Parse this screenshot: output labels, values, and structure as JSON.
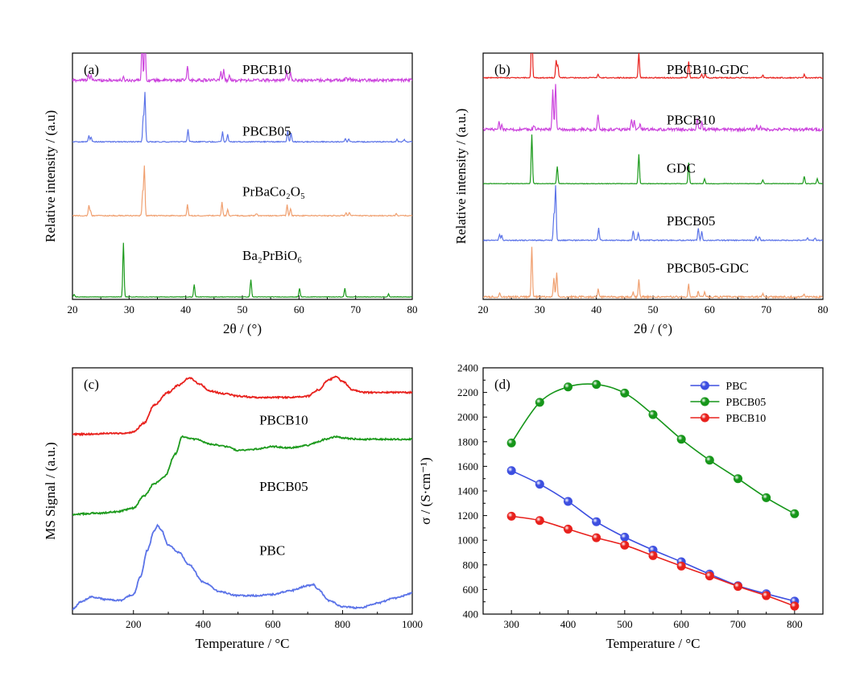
{
  "colors": {
    "red": "#e8211d",
    "magenta": "#cc44dd",
    "blue": "#5b73e8",
    "orange": "#f0a070",
    "green": "#1c9a1c"
  },
  "chart_data": [
    {
      "panel_label": "(a)",
      "type": "line",
      "xlabel": "2θ / (°)",
      "ylabel": "Relative intensity / (a.u)",
      "xlim": [
        20,
        80
      ],
      "xticks": [
        20,
        30,
        40,
        50,
        60,
        70,
        80
      ],
      "series": [
        {
          "name": "PBCB10",
          "color": "#cc44dd",
          "baseline": 0.89,
          "noise": 0.006,
          "peaks": [
            [
              22.8,
              0.025
            ],
            [
              23.3,
              0.015
            ],
            [
              29.0,
              0.01
            ],
            [
              32.3,
              0.17
            ],
            [
              32.8,
              0.19
            ],
            [
              40.3,
              0.055
            ],
            [
              46.2,
              0.035
            ],
            [
              46.7,
              0.04
            ],
            [
              47.7,
              0.025
            ],
            [
              57.8,
              0.04
            ],
            [
              58.5,
              0.03
            ],
            [
              68.3,
              0.015
            ],
            [
              69.0,
              0.012
            ]
          ]
        },
        {
          "name": "PBCB05",
          "color": "#5b73e8",
          "baseline": 0.64,
          "noise": 0.002,
          "peaks": [
            [
              22.9,
              0.025
            ],
            [
              23.3,
              0.02
            ],
            [
              32.5,
              0.1
            ],
            [
              32.8,
              0.2
            ],
            [
              40.4,
              0.05
            ],
            [
              46.5,
              0.04
            ],
            [
              47.4,
              0.03
            ],
            [
              58.0,
              0.045
            ],
            [
              58.6,
              0.035
            ],
            [
              68.2,
              0.012
            ],
            [
              68.8,
              0.012
            ],
            [
              77.3,
              0.01
            ],
            [
              78.6,
              0.01
            ]
          ]
        },
        {
          "name": "PrBaCo₂O₅",
          "color": "#f0a070",
          "baseline": 0.34,
          "noise": 0.002,
          "peaks": [
            [
              22.9,
              0.04
            ],
            [
              23.2,
              0.02
            ],
            [
              32.4,
              0.095
            ],
            [
              32.7,
              0.2
            ],
            [
              40.3,
              0.045
            ],
            [
              46.4,
              0.055
            ],
            [
              47.4,
              0.025
            ],
            [
              52.5,
              0.008
            ],
            [
              57.9,
              0.045
            ],
            [
              58.5,
              0.03
            ],
            [
              68.3,
              0.012
            ],
            [
              68.9,
              0.012
            ],
            [
              77.2,
              0.008
            ]
          ]
        },
        {
          "name": "Ba₂PrBiO₆",
          "color": "#1c9a1c",
          "baseline": 0.01,
          "noise": 0.001,
          "peaks": [
            [
              20.3,
              0.01
            ],
            [
              29.0,
              0.22
            ],
            [
              41.5,
              0.05
            ],
            [
              51.5,
              0.07
            ],
            [
              60.1,
              0.035
            ],
            [
              68.1,
              0.035
            ],
            [
              75.8,
              0.012
            ]
          ]
        }
      ]
    },
    {
      "panel_label": "(b)",
      "type": "line",
      "xlabel": "2θ / (°)",
      "ylabel": "Relative intensity / (a.u.)",
      "xlim": [
        20,
        80
      ],
      "xticks": [
        20,
        30,
        40,
        50,
        60,
        70,
        80
      ],
      "series": [
        {
          "name": "PBCB10-GDC",
          "color": "#e8211d",
          "baseline": 0.9,
          "noise": 0.002,
          "peaks": [
            [
              28.6,
              0.21
            ],
            [
              32.9,
              0.07
            ],
            [
              33.2,
              0.05
            ],
            [
              40.3,
              0.015
            ],
            [
              47.5,
              0.1
            ],
            [
              56.3,
              0.065
            ],
            [
              58.6,
              0.015
            ],
            [
              59.2,
              0.015
            ],
            [
              69.4,
              0.01
            ],
            [
              76.7,
              0.015
            ]
          ]
        },
        {
          "name": "PBCB10",
          "color": "#cc44dd",
          "baseline": 0.69,
          "noise": 0.006,
          "peaks": [
            [
              22.8,
              0.03
            ],
            [
              23.3,
              0.02
            ],
            [
              29.0,
              0.015
            ],
            [
              32.3,
              0.16
            ],
            [
              32.8,
              0.19
            ],
            [
              40.3,
              0.06
            ],
            [
              46.2,
              0.035
            ],
            [
              46.7,
              0.04
            ],
            [
              47.7,
              0.025
            ],
            [
              57.8,
              0.045
            ],
            [
              58.6,
              0.03
            ],
            [
              68.3,
              0.015
            ],
            [
              69.0,
              0.015
            ]
          ]
        },
        {
          "name": "GDC",
          "color": "#1c9a1c",
          "baseline": 0.47,
          "noise": 0.001,
          "peaks": [
            [
              28.6,
              0.2
            ],
            [
              33.1,
              0.07
            ],
            [
              47.5,
              0.12
            ],
            [
              56.3,
              0.085
            ],
            [
              59.1,
              0.02
            ],
            [
              69.4,
              0.015
            ],
            [
              76.7,
              0.03
            ],
            [
              79.0,
              0.02
            ]
          ]
        },
        {
          "name": "PBCB05",
          "color": "#5b73e8",
          "baseline": 0.24,
          "noise": 0.002,
          "peaks": [
            [
              22.9,
              0.025
            ],
            [
              23.3,
              0.02
            ],
            [
              32.5,
              0.1
            ],
            [
              32.8,
              0.22
            ],
            [
              40.4,
              0.05
            ],
            [
              46.5,
              0.04
            ],
            [
              47.4,
              0.03
            ],
            [
              58.0,
              0.05
            ],
            [
              58.6,
              0.035
            ],
            [
              68.2,
              0.015
            ],
            [
              68.8,
              0.015
            ],
            [
              77.3,
              0.01
            ],
            [
              78.6,
              0.01
            ]
          ]
        },
        {
          "name": "PBCB05-GDC",
          "color": "#f0a070",
          "baseline": 0.01,
          "noise": 0.004,
          "peaks": [
            [
              22.9,
              0.015
            ],
            [
              28.6,
              0.2
            ],
            [
              32.5,
              0.08
            ],
            [
              33.0,
              0.1
            ],
            [
              40.3,
              0.03
            ],
            [
              46.5,
              0.02
            ],
            [
              47.5,
              0.07
            ],
            [
              56.3,
              0.05
            ],
            [
              58.0,
              0.025
            ],
            [
              59.1,
              0.02
            ],
            [
              69.4,
              0.012
            ],
            [
              76.7,
              0.012
            ]
          ]
        }
      ]
    },
    {
      "panel_label": "(c)",
      "type": "line",
      "xlabel": "Temperature / °C",
      "ylabel": "MS Signal / (a.u.)",
      "xlim": [
        25,
        1000
      ],
      "xticks": [
        200,
        400,
        600,
        800,
        1000
      ],
      "series": [
        {
          "name": "PBCB10",
          "color": "#e8211d",
          "x": [
            25,
            180,
            200,
            230,
            260,
            300,
            330,
            360,
            390,
            420,
            460,
            500,
            550,
            600,
            650,
            700,
            730,
            760,
            780,
            800,
            830,
            860,
            900,
            950,
            1000
          ],
          "y": [
            0.73,
            0.735,
            0.74,
            0.775,
            0.85,
            0.9,
            0.93,
            0.96,
            0.935,
            0.905,
            0.895,
            0.885,
            0.88,
            0.88,
            0.88,
            0.885,
            0.91,
            0.95,
            0.965,
            0.945,
            0.91,
            0.9,
            0.9,
            0.9,
            0.9
          ]
        },
        {
          "name": "PBCB05",
          "color": "#1c9a1c",
          "x": [
            25,
            100,
            150,
            200,
            230,
            260,
            290,
            320,
            340,
            380,
            420,
            470,
            500,
            550,
            600,
            650,
            700,
            730,
            750,
            780,
            800,
            850,
            900,
            950,
            1000
          ],
          "y": [
            0.405,
            0.41,
            0.415,
            0.43,
            0.48,
            0.53,
            0.56,
            0.65,
            0.72,
            0.71,
            0.69,
            0.68,
            0.665,
            0.67,
            0.68,
            0.675,
            0.685,
            0.7,
            0.71,
            0.72,
            0.715,
            0.71,
            0.71,
            0.71,
            0.71
          ]
        },
        {
          "name": "PBC",
          "color": "#5b73e8",
          "x": [
            25,
            50,
            80,
            120,
            160,
            200,
            220,
            240,
            260,
            270,
            280,
            300,
            330,
            360,
            400,
            450,
            500,
            550,
            600,
            650,
            700,
            715,
            730,
            760,
            800,
            850,
            900,
            950,
            1000
          ],
          "y": [
            0.02,
            0.05,
            0.07,
            0.06,
            0.055,
            0.08,
            0.15,
            0.26,
            0.34,
            0.36,
            0.34,
            0.28,
            0.25,
            0.2,
            0.13,
            0.09,
            0.075,
            0.075,
            0.08,
            0.095,
            0.115,
            0.12,
            0.1,
            0.055,
            0.03,
            0.025,
            0.045,
            0.065,
            0.085
          ]
        }
      ]
    },
    {
      "panel_label": "(d)",
      "type": "line",
      "xlabel": "Temperature / °C",
      "ylabel": "σ / (S·cm⁻¹)",
      "xlim": [
        250,
        850
      ],
      "ylim": [
        400,
        2400
      ],
      "xticks": [
        300,
        400,
        500,
        600,
        700,
        800
      ],
      "yticks": [
        400,
        600,
        800,
        1000,
        1200,
        1400,
        1600,
        1800,
        2000,
        2200,
        2400
      ],
      "legend_position": "top-right",
      "series": [
        {
          "name": "PBC",
          "color": "#3d4fe0",
          "x": [
            300,
            350,
            400,
            450,
            500,
            550,
            600,
            650,
            700,
            750,
            800
          ],
          "y": [
            1565,
            1455,
            1315,
            1150,
            1025,
            920,
            825,
            725,
            630,
            565,
            505
          ]
        },
        {
          "name": "PBCB05",
          "color": "#16961a",
          "x": [
            300,
            350,
            400,
            450,
            500,
            550,
            600,
            650,
            700,
            750,
            800
          ],
          "y": [
            1790,
            2120,
            2245,
            2265,
            2195,
            2020,
            1820,
            1650,
            1500,
            1345,
            1215
          ]
        },
        {
          "name": "PBCB10",
          "color": "#e8211d",
          "x": [
            300,
            350,
            400,
            450,
            500,
            550,
            600,
            650,
            700,
            750,
            800
          ],
          "y": [
            1195,
            1160,
            1090,
            1020,
            960,
            875,
            790,
            710,
            625,
            550,
            465
          ]
        }
      ]
    }
  ]
}
